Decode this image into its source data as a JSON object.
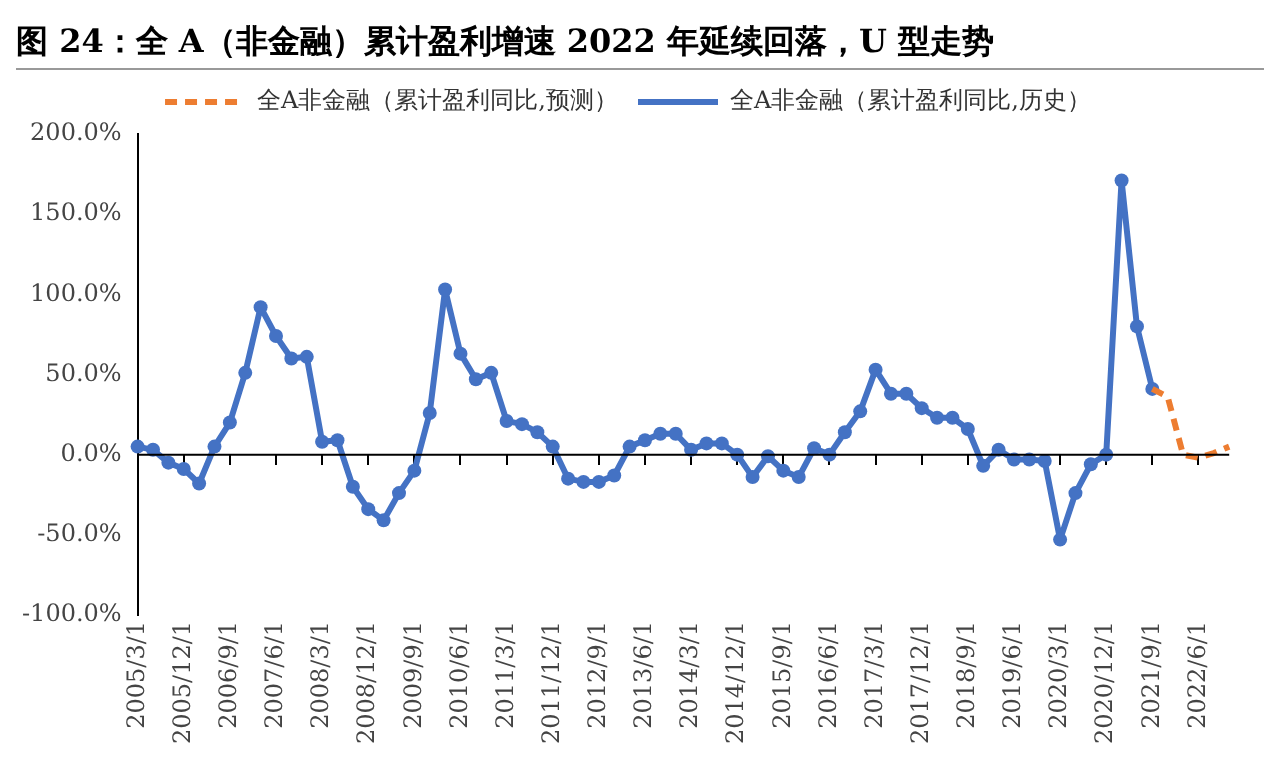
{
  "chart_data": {
    "type": "line",
    "title": "图 24：全 A（非金融）累计盈利增速 2022 年延续回落，U 型走势",
    "categories": [
      "2005/3/1",
      null,
      null,
      "2005/12/1",
      null,
      null,
      "2006/9/1",
      null,
      null,
      "2007/6/1",
      null,
      null,
      "2008/3/1",
      null,
      null,
      "2008/12/1",
      null,
      null,
      "2009/9/1",
      null,
      null,
      "2010/6/1",
      null,
      null,
      "2011/3/1",
      null,
      null,
      "2011/12/1",
      null,
      null,
      "2012/9/1",
      null,
      null,
      "2013/6/1",
      null,
      null,
      "2014/3/1",
      null,
      null,
      "2014/12/1",
      null,
      null,
      "2015/9/1",
      null,
      null,
      "2016/6/1",
      null,
      null,
      "2017/3/1",
      null,
      null,
      "2017/12/1",
      null,
      null,
      "2018/9/1",
      null,
      null,
      "2019/6/1",
      null,
      null,
      "2020/3/1",
      null,
      null,
      "2020/12/1",
      null,
      null,
      "2021/9/1",
      null,
      null,
      "2022/6/1",
      null,
      null
    ],
    "series": [
      {
        "name": "全A非金融（累计盈利同比,预测）",
        "color": "#ed7d31",
        "line_style": "dashed",
        "marker": "none",
        "values": [
          null,
          null,
          null,
          null,
          null,
          null,
          null,
          null,
          null,
          null,
          null,
          null,
          null,
          null,
          null,
          null,
          null,
          null,
          null,
          null,
          null,
          null,
          null,
          null,
          null,
          null,
          null,
          null,
          null,
          null,
          null,
          null,
          null,
          null,
          null,
          null,
          null,
          null,
          null,
          null,
          null,
          null,
          null,
          null,
          null,
          null,
          null,
          null,
          null,
          null,
          null,
          null,
          null,
          null,
          null,
          null,
          null,
          null,
          null,
          null,
          null,
          null,
          null,
          null,
          null,
          null,
          41,
          36,
          0,
          -2,
          1,
          5
        ]
      },
      {
        "name": "全A非金融（累计盈利同比,历史）",
        "color": "#4472c4",
        "line_style": "solid",
        "marker": "circle",
        "values": [
          5,
          3,
          -5,
          -9,
          -18,
          5,
          20,
          51,
          92,
          74,
          60,
          61,
          8,
          9,
          -20,
          -34,
          -41,
          -24,
          -10,
          26,
          103,
          63,
          47,
          51,
          21,
          19,
          14,
          5,
          -15,
          -17,
          -17,
          -13,
          5,
          9,
          13,
          13,
          3,
          7,
          7,
          0,
          -14,
          -1,
          -10,
          -14,
          4,
          0,
          14,
          27,
          53,
          38,
          38,
          29,
          23,
          23,
          16,
          -7,
          3,
          -3,
          -3,
          -4,
          -53,
          -24,
          -6,
          0,
          171,
          80,
          41,
          null,
          null,
          null,
          null,
          null
        ]
      }
    ],
    "ylim": [
      -100,
      200
    ],
    "yticks": [
      {
        "value": -100,
        "label": "-100.0%"
      },
      {
        "value": -50,
        "label": "-50.0%"
      },
      {
        "value": 0,
        "label": "0.0%"
      },
      {
        "value": 50,
        "label": "50.0%"
      },
      {
        "value": 100,
        "label": "100.0%"
      },
      {
        "value": 150,
        "label": "150.0%"
      },
      {
        "value": 200,
        "label": "200.0%"
      }
    ],
    "ref_lines": [
      {
        "axis": "y",
        "value": 0,
        "color": "#000000",
        "line_style": "solid"
      }
    ],
    "grid": false,
    "legend": "top"
  }
}
